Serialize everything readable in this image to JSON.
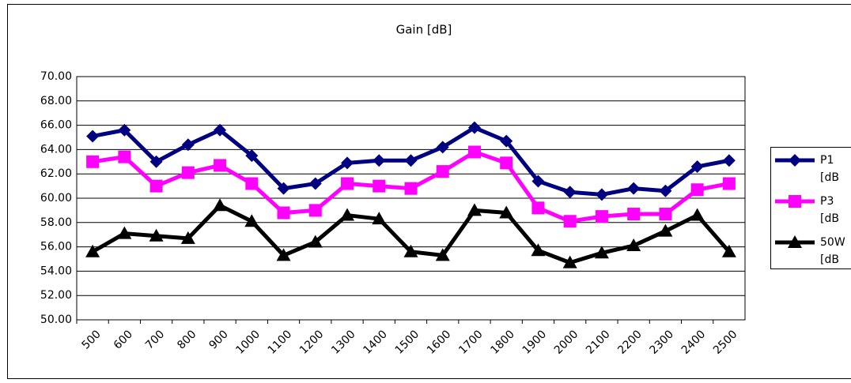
{
  "chart_data": {
    "type": "line",
    "title": "Gain [dB]",
    "categories": [
      "500",
      "600",
      "700",
      "800",
      "900",
      "1000",
      "1100",
      "1200",
      "1300",
      "1400",
      "1500",
      "1600",
      "1700",
      "1800",
      "1900",
      "2000",
      "2100",
      "2200",
      "2300",
      "2400",
      "2500"
    ],
    "series": [
      {
        "name": "P1 [dB",
        "color": "#000080",
        "marker": "diamond",
        "values": [
          65.1,
          65.6,
          63.0,
          64.4,
          65.6,
          63.5,
          60.8,
          61.2,
          62.9,
          63.1,
          63.1,
          64.2,
          65.8,
          64.7,
          61.4,
          60.5,
          60.3,
          60.8,
          60.6,
          62.6,
          63.1
        ]
      },
      {
        "name": "P3 [dB",
        "color": "#ff00ff",
        "marker": "square",
        "values": [
          63.0,
          63.4,
          61.0,
          62.1,
          62.7,
          61.2,
          58.8,
          59.0,
          61.2,
          61.0,
          60.8,
          62.2,
          63.8,
          62.9,
          59.2,
          58.1,
          58.5,
          58.7,
          58.7,
          60.7,
          61.2
        ]
      },
      {
        "name": "50W [dB",
        "color": "#000000",
        "marker": "triangle",
        "values": [
          55.6,
          57.1,
          56.9,
          56.7,
          59.4,
          58.1,
          55.3,
          56.4,
          58.6,
          58.3,
          55.6,
          55.3,
          59.0,
          58.8,
          55.7,
          54.7,
          55.5,
          56.1,
          57.3,
          58.6,
          55.6
        ]
      }
    ],
    "ylim": [
      50,
      70
    ],
    "yticks": [
      {
        "value": 50,
        "label": "50.00"
      },
      {
        "value": 52,
        "label": "52.00"
      },
      {
        "value": 54,
        "label": "54.00"
      },
      {
        "value": 56,
        "label": "56.00"
      },
      {
        "value": 58,
        "label": "58.00"
      },
      {
        "value": 60,
        "label": "60.00"
      },
      {
        "value": 62,
        "label": "62.00"
      },
      {
        "value": 64,
        "label": "64.00"
      },
      {
        "value": 66,
        "label": "66.00"
      },
      {
        "value": 68,
        "label": "68.00"
      },
      {
        "value": 70,
        "label": "70.00"
      }
    ],
    "grid": true,
    "legend": "right"
  }
}
